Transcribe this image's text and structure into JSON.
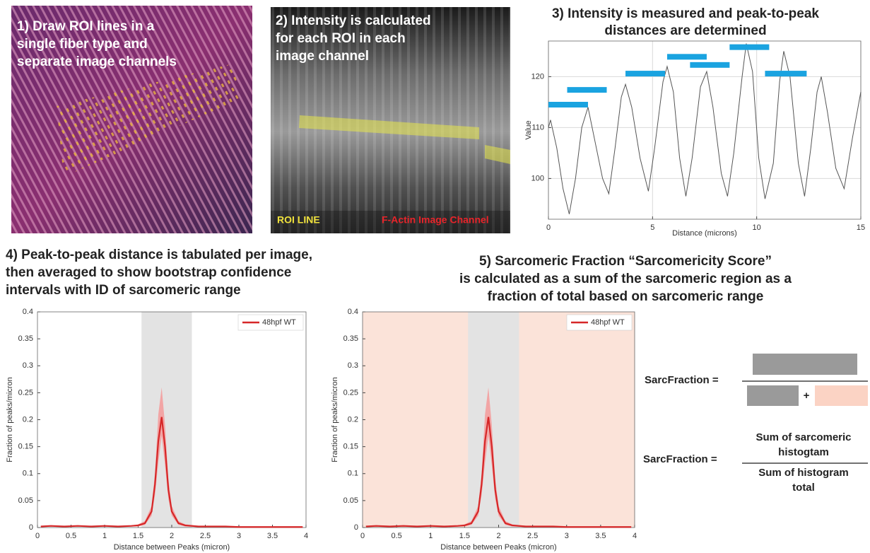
{
  "panels": [
    {
      "title": [
        "1) Draw ROI lines in a",
        "single fiber type and",
        "separate image channels"
      ]
    },
    {
      "title": [
        "2) Intensity is calculated",
        "for each ROI in each",
        "image channel"
      ],
      "labels": [
        "ROI LINE",
        "F-Actin Image Channel"
      ]
    }
  ],
  "chart_data": [
    {
      "type": "line",
      "title": [
        "3) Intensity is measured and peak-to-peak",
        "distances are determined"
      ],
      "xlabel": "Distance (microns)",
      "ylabel": "Value",
      "xlim": [
        0,
        15
      ],
      "ylim": [
        92,
        127
      ],
      "xticks": [
        0,
        5,
        10,
        15
      ],
      "yticks": [
        100,
        110,
        120
      ],
      "grid": true,
      "series": [
        {
          "color": "#555555",
          "x": [
            0,
            0.1,
            0.4,
            0.7,
            1.0,
            1.3,
            1.6,
            1.9,
            2.2,
            2.6,
            2.9,
            3.2,
            3.5,
            3.7,
            4.0,
            4.4,
            4.8,
            5.1,
            5.5,
            5.7,
            6.0,
            6.3,
            6.6,
            6.9,
            7.3,
            7.6,
            7.9,
            8.3,
            8.6,
            8.9,
            9.3,
            9.5,
            9.8,
            10.1,
            10.4,
            10.8,
            11.1,
            11.3,
            11.6,
            12.0,
            12.3,
            12.6,
            12.9,
            13.1,
            13.4,
            13.8,
            14.2,
            14.6,
            15.0
          ],
          "values": [
            110,
            111.5,
            106,
            98,
            93,
            100,
            110,
            114,
            108,
            100,
            97,
            106,
            116,
            118.5,
            114,
            104,
            97.5,
            106,
            119,
            122,
            117,
            104,
            96.5,
            104,
            118,
            121,
            114,
            101,
            96.5,
            105,
            120,
            126.5,
            121,
            104,
            96,
            103,
            119,
            125,
            120,
            103,
            96.5,
            106,
            117,
            120,
            113,
            102,
            98,
            108,
            117
          ]
        }
      ],
      "intervals": {
        "color": "#1aa3e0",
        "x_start": [
          0,
          0.9,
          3.7,
          5.7,
          6.8,
          8.7,
          10.4
        ],
        "x_end": [
          1.9,
          2.8,
          5.6,
          7.6,
          8.7,
          10.6,
          12.4
        ],
        "y": [
          114.5,
          117.4,
          120.6,
          123.9,
          122.3,
          125.8,
          120.6
        ]
      }
    },
    {
      "type": "line",
      "title": [
        "4) Peak-to-peak distance is tabulated per image,",
        "then averaged to show bootstrap confidence",
        "intervals with ID of sarcomeric range"
      ],
      "xlabel": "Distance between Peaks (micron)",
      "ylabel": "Fraction of peaks/micron",
      "xlim": [
        0,
        4
      ],
      "ylim": [
        0,
        0.4
      ],
      "xticks": [
        0,
        0.5,
        1,
        1.5,
        2,
        2.5,
        3,
        3.5,
        4
      ],
      "yticks": [
        0,
        0.05,
        0.1,
        0.15,
        0.2,
        0.25,
        0.3,
        0.35,
        0.4
      ],
      "legend": "upper right",
      "sarcomeric_range": [
        1.55,
        2.3
      ],
      "range_color": "#e3e3e3",
      "series": [
        {
          "name": "48hpf WT",
          "color": "#d62728",
          "band_color": "#f2a5a5",
          "x": [
            0.05,
            0.2,
            0.4,
            0.6,
            0.8,
            1.0,
            1.2,
            1.4,
            1.5,
            1.6,
            1.7,
            1.75,
            1.8,
            1.85,
            1.9,
            1.95,
            2.0,
            2.1,
            2.2,
            2.4,
            2.6,
            2.8,
            3.0,
            3.2,
            3.4,
            3.6,
            3.8,
            3.95
          ],
          "values": [
            0.002,
            0.003,
            0.002,
            0.003,
            0.002,
            0.003,
            0.002,
            0.003,
            0.004,
            0.008,
            0.03,
            0.08,
            0.16,
            0.205,
            0.15,
            0.07,
            0.03,
            0.008,
            0.004,
            0.002,
            0.002,
            0.002,
            0.001,
            0.001,
            0.001,
            0.001,
            0.001,
            0.001
          ],
          "ci_upper": [
            0.003,
            0.004,
            0.003,
            0.004,
            0.003,
            0.004,
            0.003,
            0.004,
            0.006,
            0.012,
            0.04,
            0.1,
            0.21,
            0.26,
            0.19,
            0.09,
            0.04,
            0.012,
            0.006,
            0.003,
            0.003,
            0.003,
            0.002,
            0.002,
            0.002,
            0.002,
            0.002,
            0.002
          ],
          "ci_lower": [
            0.001,
            0.002,
            0.001,
            0.002,
            0.001,
            0.002,
            0.001,
            0.002,
            0.002,
            0.005,
            0.022,
            0.06,
            0.12,
            0.17,
            0.115,
            0.053,
            0.022,
            0.005,
            0.002,
            0.001,
            0.001,
            0.001,
            0,
            0,
            0,
            0,
            0,
            0
          ]
        }
      ]
    },
    {
      "type": "line",
      "title": [
        "5) Sarcomeric Fraction “Sarcomericity Score”",
        "is calculated as a sum of the sarcomeric region as a",
        "fraction of total based on sarcomeric range"
      ],
      "xlabel": "Distance between Peaks (micron)",
      "ylabel": "Fraction of peaks/micron",
      "xlim": [
        0,
        4
      ],
      "ylim": [
        0,
        0.4
      ],
      "xticks": [
        0,
        0.5,
        1,
        1.5,
        2,
        2.5,
        3,
        3.5,
        4
      ],
      "yticks": [
        0,
        0.05,
        0.1,
        0.15,
        0.2,
        0.25,
        0.3,
        0.35,
        0.4
      ],
      "legend": "upper right",
      "sarcomeric_range": [
        1.55,
        2.3
      ],
      "range_color": "#e3e3e3",
      "background_color": "#fbe3d9",
      "series": [
        {
          "name": "48hpf WT",
          "color": "#d62728",
          "band_color": "#f2a5a5",
          "x": [
            0.05,
            0.2,
            0.4,
            0.6,
            0.8,
            1.0,
            1.2,
            1.4,
            1.5,
            1.6,
            1.7,
            1.75,
            1.8,
            1.85,
            1.9,
            1.95,
            2.0,
            2.1,
            2.2,
            2.4,
            2.6,
            2.8,
            3.0,
            3.2,
            3.4,
            3.6,
            3.8,
            3.95
          ],
          "values": [
            0.002,
            0.003,
            0.002,
            0.003,
            0.002,
            0.003,
            0.002,
            0.003,
            0.004,
            0.008,
            0.03,
            0.08,
            0.16,
            0.205,
            0.15,
            0.07,
            0.03,
            0.008,
            0.004,
            0.002,
            0.002,
            0.002,
            0.001,
            0.001,
            0.001,
            0.001,
            0.001,
            0.001
          ],
          "ci_upper": [
            0.003,
            0.004,
            0.003,
            0.004,
            0.003,
            0.004,
            0.003,
            0.004,
            0.006,
            0.012,
            0.04,
            0.1,
            0.21,
            0.26,
            0.19,
            0.09,
            0.04,
            0.012,
            0.006,
            0.003,
            0.003,
            0.003,
            0.002,
            0.002,
            0.002,
            0.002,
            0.002,
            0.002
          ],
          "ci_lower": [
            0.001,
            0.002,
            0.001,
            0.002,
            0.001,
            0.002,
            0.001,
            0.002,
            0.002,
            0.005,
            0.022,
            0.06,
            0.12,
            0.17,
            0.115,
            0.053,
            0.022,
            0.005,
            0.002,
            0.001,
            0.001,
            0.001,
            0,
            0,
            0,
            0,
            0,
            0
          ]
        }
      ]
    }
  ],
  "formula": {
    "lhs": [
      "SarcFraction =",
      "SarcFraction ="
    ],
    "plus": "+",
    "numerator": [
      "Sum of sarcomeric",
      "histogtam"
    ],
    "denominator": [
      "Sum of histogram",
      "total"
    ]
  }
}
